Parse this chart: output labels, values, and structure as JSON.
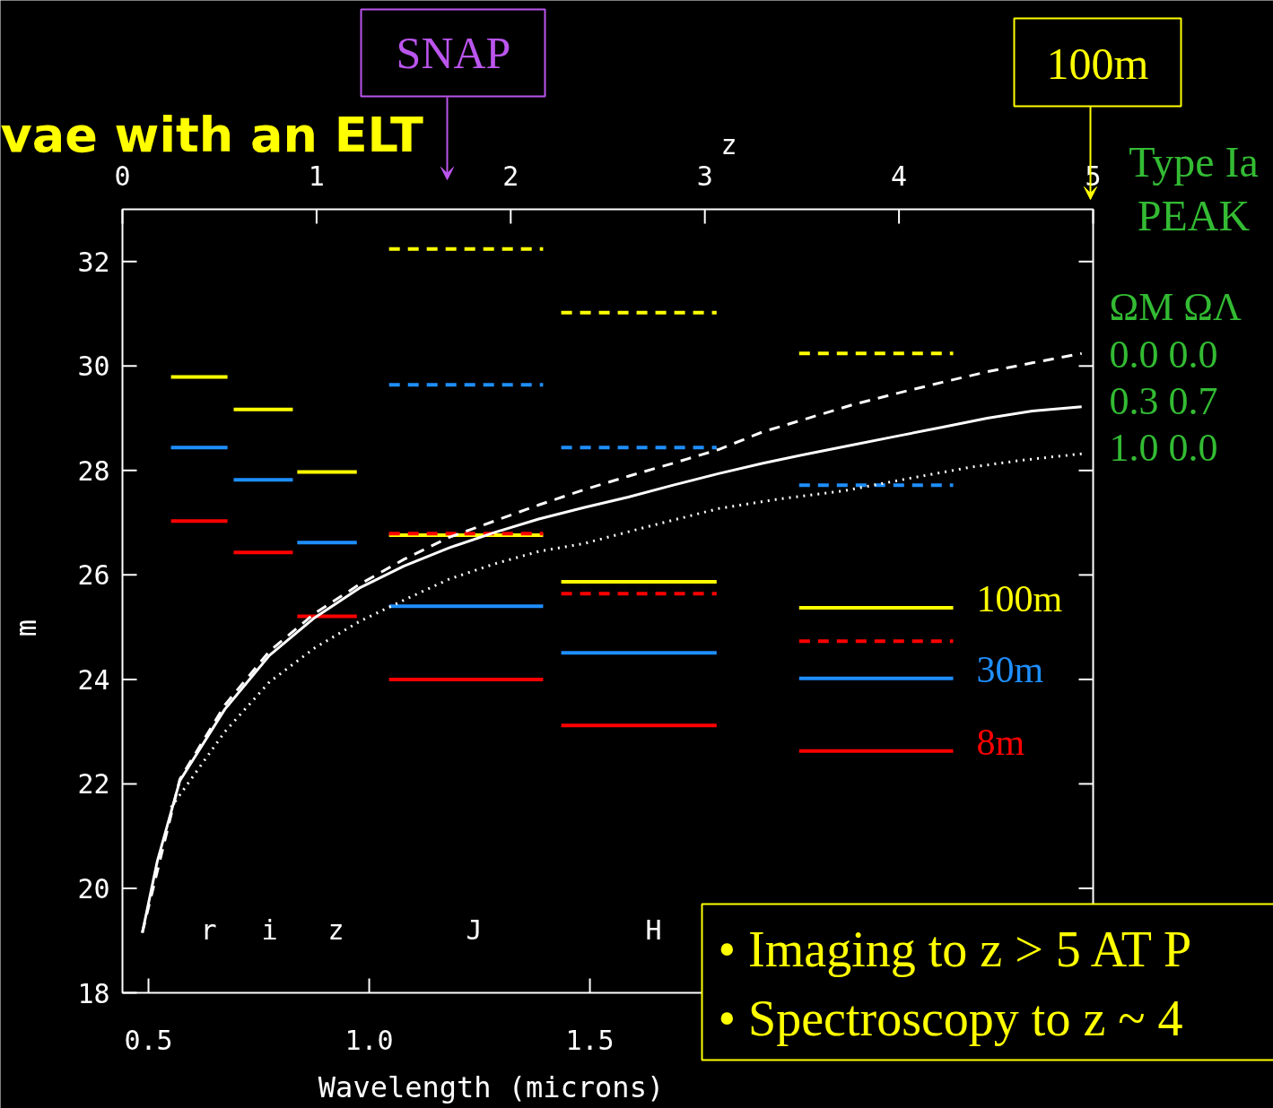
{
  "chart_data": {
    "type": "line",
    "title": "vae with an ELT",
    "xlabel": "Wavelength (microns)",
    "ylabel": "m",
    "x2label": "z",
    "xlim": [
      0.441,
      2.64
    ],
    "ylim": [
      18,
      33
    ],
    "x2lim": [
      0,
      5
    ],
    "xticks": [
      0.5,
      {
        "value": 1.0,
        "label": "1.0"
      },
      1.5
    ],
    "yticks": [
      18,
      20,
      22,
      24,
      26,
      28,
      30,
      32
    ],
    "x2ticks": [
      0,
      1,
      2,
      3,
      4,
      5
    ],
    "series": [
      {
        "name": "100m",
        "color": "#ffff00",
        "line_style": "solid",
        "x": [
          0.551,
          0.679,
          null,
          0.693,
          0.827,
          null,
          0.837,
          0.972,
          null,
          1.045,
          1.394,
          null,
          1.435,
          1.787,
          null,
          1.974,
          2.323
        ],
        "values": [
          29.79,
          29.79,
          null,
          29.17,
          29.17,
          null,
          27.97,
          27.97,
          null,
          26.76,
          26.76,
          null,
          25.87,
          25.87,
          null,
          25.37,
          25.37
        ]
      },
      {
        "name": "30m",
        "color": "#1e8fff",
        "line_style": "solid",
        "x": [
          0.551,
          0.679,
          null,
          0.693,
          0.827,
          null,
          0.837,
          0.972,
          null,
          1.045,
          1.394,
          null,
          1.435,
          1.787,
          null,
          1.974,
          2.323
        ],
        "values": [
          28.44,
          28.44,
          null,
          27.82,
          27.82,
          null,
          26.62,
          26.62,
          null,
          25.4,
          25.4,
          null,
          24.51,
          24.51,
          null,
          24.02,
          24.02
        ]
      },
      {
        "name": "8m",
        "color": "#ff0000",
        "line_style": "solid",
        "x": [
          0.551,
          0.679,
          null,
          0.693,
          0.827,
          null,
          0.837,
          0.972,
          null,
          1.045,
          1.394,
          null,
          1.435,
          1.787,
          null,
          1.974,
          2.323
        ],
        "values": [
          27.03,
          27.03,
          null,
          26.43,
          26.43,
          null,
          25.21,
          25.21,
          null,
          24.0,
          24.0,
          null,
          23.12,
          23.12,
          null,
          22.63,
          22.63
        ]
      },
      {
        "color": "#ffff00",
        "line_style": "dashed",
        "x": [
          1.045,
          1.394,
          null,
          1.435,
          1.787,
          null,
          1.974,
          2.323
        ],
        "values": [
          32.24,
          32.24,
          null,
          31.02,
          31.02,
          null,
          30.24,
          30.24
        ]
      },
      {
        "color": "#1e8fff",
        "line_style": "dashed",
        "x": [
          1.045,
          1.394,
          null,
          1.435,
          1.787,
          null,
          1.974,
          2.323
        ],
        "values": [
          29.64,
          29.64,
          null,
          28.44,
          28.44,
          null,
          27.72,
          27.72
        ]
      },
      {
        "color": "#ff0000",
        "line_style": "dashed",
        "x": [
          1.045,
          1.394,
          null,
          1.435,
          1.787,
          null,
          1.974,
          2.323
        ],
        "values": [
          26.79,
          26.79,
          null,
          25.64,
          25.64,
          null,
          24.73,
          24.73
        ]
      },
      {
        "color": "#ffffff",
        "line_style": "solid",
        "x": [
          0.486,
          0.52,
          0.571,
          0.673,
          0.774,
          0.876,
          0.978,
          1.079,
          1.181,
          1.283,
          1.384,
          1.486,
          1.587,
          1.689,
          1.791,
          1.892,
          1.994,
          2.096,
          2.197,
          2.299,
          2.4,
          2.502,
          2.614
        ],
        "values": [
          19.15,
          20.52,
          22.06,
          23.43,
          24.46,
          25.18,
          25.75,
          26.17,
          26.52,
          26.81,
          27.07,
          27.29,
          27.49,
          27.72,
          27.94,
          28.14,
          28.32,
          28.49,
          28.66,
          28.83,
          29.0,
          29.14,
          29.22
        ]
      },
      {
        "color": "#ffffff",
        "line_style": "dashed",
        "x": [
          0.486,
          0.571,
          0.673,
          0.774,
          0.876,
          0.978,
          1.079,
          1.181,
          1.283,
          1.384,
          1.486,
          1.587,
          1.689,
          1.791,
          1.892,
          1.994,
          2.096,
          2.197,
          2.299,
          2.4,
          2.502,
          2.614
        ],
        "values": [
          19.15,
          22.09,
          23.51,
          24.54,
          25.26,
          25.82,
          26.3,
          26.72,
          27.03,
          27.34,
          27.63,
          27.89,
          28.14,
          28.4,
          28.74,
          29.0,
          29.26,
          29.48,
          29.69,
          29.89,
          30.06,
          30.24
        ]
      },
      {
        "color": "#ffffff",
        "line_style": "dotted",
        "x": [
          0.551,
          0.673,
          0.774,
          0.876,
          0.978,
          1.079,
          1.181,
          1.283,
          1.384,
          1.486,
          1.638,
          1.791,
          1.933,
          2.075,
          2.218,
          2.36,
          2.482,
          2.614
        ],
        "values": [
          21.55,
          23.0,
          23.95,
          24.6,
          25.11,
          25.52,
          25.92,
          26.21,
          26.45,
          26.6,
          26.94,
          27.27,
          27.46,
          27.61,
          27.84,
          28.06,
          28.2,
          28.32
        ]
      }
    ],
    "annotations": [
      "SNAP",
      "100m",
      "Type Ia",
      "PEAK",
      "ΩM  ΩΛ",
      "0.0   0.0",
      "0.3   0.7",
      "1.0   0.0",
      "r",
      "i",
      "z",
      "J",
      "H",
      "• Imaging to z > 5 AT P",
      "• Spectroscopy to  z ~ 4"
    ]
  }
}
